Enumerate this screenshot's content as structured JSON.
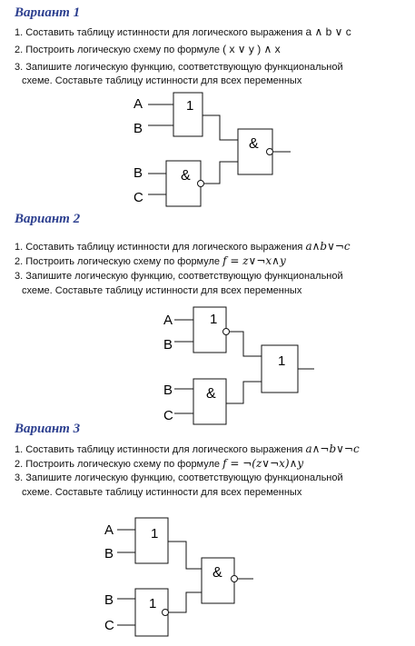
{
  "variants": [
    {
      "title": "Вариант 1",
      "task1_text": "1. Составить таблицу истинности для логического выражения",
      "task1_expr": "a ∧ b ∨ c",
      "task2_text": "2. Построить логическую схему по формуле",
      "task2_expr": "( x ∨ y ) ∧ x",
      "task3_line1": "3. Запишите логическую функцию, соответствующую функциональной",
      "task3_line2": "схеме. Составьте таблицу истинности для всех переменных",
      "scheme": {
        "inputs": [
          "A",
          "B",
          "B",
          "C"
        ],
        "gate1": "1",
        "gate2": "&",
        "gate3": "&"
      }
    },
    {
      "title": "Вариант 2",
      "task1_text": "1. Составить таблицу истинности для логического выражения",
      "task1_expr": "a∧b∨¬c",
      "task2_text": "2. Построить логическую  схему по формуле",
      "task2_expr": "f = z∨¬x∧y",
      "task3_line1": "3. Запишите логическую функцию, соответствующую функциональной",
      "task3_line2": "схеме. Составьте таблицу истинности для всех переменных",
      "scheme": {
        "inputs": [
          "A",
          "B",
          "B",
          "C"
        ],
        "gate1": "1",
        "gate2": "&",
        "gate3": "1"
      }
    },
    {
      "title": "Вариант 3",
      "task1_text": "1. Составить таблицу истинности для логического выражения",
      "task1_expr": "a∧¬b∨¬c",
      "task2_text": "2. Построить логическую  схему по формуле",
      "task2_expr": "f = ¬(z∨¬x)∧y",
      "task3_line1": "3. Запишите логическую функцию, соответствующую функциональной",
      "task3_line2": "схеме. Составьте таблицу истинности для всех переменных",
      "scheme": {
        "inputs": [
          "A",
          "B",
          "B",
          "C"
        ],
        "gate1": "1",
        "gate2": "1",
        "gate3": "&"
      }
    }
  ]
}
